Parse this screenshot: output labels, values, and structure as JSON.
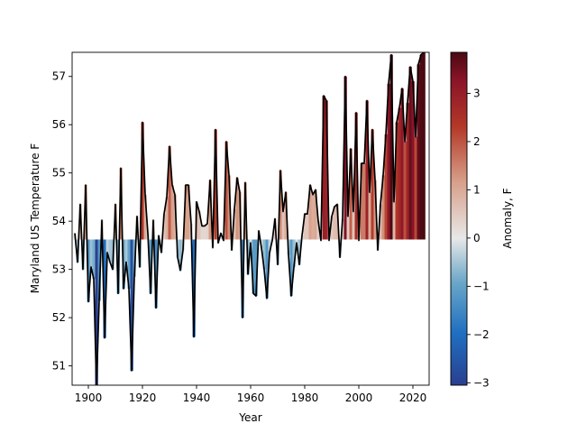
{
  "chart_data": {
    "type": "bar",
    "xlabel": "Year",
    "ylabel": "Maryland US Temperature F",
    "colorbar_label": "Anomaly, F",
    "baseline": 53.62,
    "xlim": [
      1894,
      2026
    ],
    "ylim": [
      50.6,
      57.5
    ],
    "x_ticks": [
      1900,
      1920,
      1940,
      1960,
      1980,
      2000,
      2020
    ],
    "y_ticks": [
      51,
      52,
      53,
      54,
      55,
      56,
      57
    ],
    "colorbar_range": [
      -3.05,
      3.85
    ],
    "colorbar_ticks": [
      -3,
      -2,
      -1,
      0,
      1,
      2,
      3
    ],
    "colormap": [
      "#2a3f8f",
      "#1f6fc0",
      "#6aa7c8",
      "#e8e8e8",
      "#d8a08a",
      "#b33828",
      "#8a1428",
      "#4a0a12"
    ],
    "line_color": "#000000",
    "grid": false,
    "years": [
      1895,
      1896,
      1897,
      1898,
      1899,
      1900,
      1901,
      1902,
      1903,
      1904,
      1905,
      1906,
      1907,
      1908,
      1909,
      1910,
      1911,
      1912,
      1913,
      1914,
      1915,
      1916,
      1917,
      1918,
      1919,
      1920,
      1921,
      1922,
      1923,
      1924,
      1925,
      1926,
      1927,
      1928,
      1929,
      1930,
      1931,
      1932,
      1933,
      1934,
      1935,
      1936,
      1937,
      1938,
      1939,
      1940,
      1941,
      1942,
      1943,
      1944,
      1945,
      1946,
      1947,
      1948,
      1949,
      1950,
      1951,
      1952,
      1953,
      1954,
      1955,
      1956,
      1957,
      1958,
      1959,
      1960,
      1961,
      1962,
      1963,
      1964,
      1965,
      1966,
      1967,
      1968,
      1969,
      1970,
      1971,
      1972,
      1973,
      1974,
      1975,
      1976,
      1977,
      1978,
      1979,
      1980,
      1981,
      1982,
      1983,
      1984,
      1985,
      1986,
      1987,
      1988,
      1989,
      1990,
      1991,
      1992,
      1993,
      1994,
      1995,
      1996,
      1997,
      1998,
      1999,
      2000,
      2001,
      2002,
      2003,
      2004,
      2005,
      2006,
      2007,
      2008,
      2009,
      2010,
      2011,
      2012,
      2013,
      2014,
      2015,
      2016,
      2017,
      2018,
      2019,
      2020,
      2021,
      2022,
      2023,
      2024
    ],
    "values": [
      53.75,
      53.15,
      54.35,
      53.0,
      54.75,
      52.33,
      53.05,
      52.8,
      50.55,
      52.35,
      54.02,
      51.58,
      53.35,
      53.15,
      53.0,
      54.35,
      52.5,
      55.1,
      52.6,
      53.15,
      52.6,
      50.9,
      52.85,
      54.1,
      53.05,
      56.05,
      54.55,
      53.75,
      52.5,
      54.02,
      52.2,
      53.7,
      53.35,
      54.15,
      54.5,
      55.55,
      54.75,
      54.55,
      53.25,
      52.98,
      53.4,
      54.75,
      54.75,
      53.95,
      51.6,
      54.4,
      54.2,
      53.9,
      53.9,
      53.95,
      54.85,
      53.45,
      55.9,
      53.55,
      53.75,
      53.6,
      55.65,
      54.95,
      53.4,
      54.25,
      54.9,
      54.6,
      52.0,
      54.8,
      52.9,
      53.55,
      52.5,
      52.45,
      53.8,
      53.45,
      53.0,
      52.4,
      53.35,
      53.6,
      54.05,
      53.1,
      55.05,
      54.2,
      54.6,
      53.3,
      52.45,
      53.05,
      53.55,
      53.1,
      53.7,
      54.15,
      54.15,
      54.75,
      54.55,
      54.65,
      54.0,
      53.6,
      56.6,
      56.5,
      53.6,
      54.1,
      54.3,
      54.35,
      53.25,
      54.05,
      57.0,
      54.1,
      55.5,
      54.2,
      56.25,
      53.6,
      55.2,
      55.2,
      56.5,
      54.6,
      55.9,
      54.85,
      53.4,
      54.35,
      54.95,
      55.8,
      56.85,
      57.45,
      54.4,
      56.05,
      56.35,
      56.75,
      55.65,
      56.45,
      57.2,
      56.9,
      55.75,
      57.25,
      57.45,
      57.5
    ]
  }
}
